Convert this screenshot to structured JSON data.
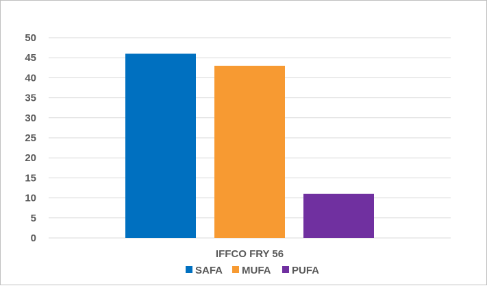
{
  "chart_data": {
    "type": "bar",
    "categories": [
      "IFFCO FRY 56"
    ],
    "series": [
      {
        "name": "SAFA",
        "values": [
          46
        ],
        "color": "#0070C0"
      },
      {
        "name": "MUFA",
        "values": [
          43
        ],
        "color": "#F79A32"
      },
      {
        "name": "PUFA",
        "values": [
          11
        ],
        "color": "#7030A0"
      }
    ],
    "ylim": [
      0,
      50
    ],
    "yticks": [
      "0",
      "5",
      "10",
      "15",
      "20",
      "25",
      "30",
      "35",
      "40",
      "45",
      "50"
    ],
    "grid": true,
    "legend_position": "bottom"
  }
}
